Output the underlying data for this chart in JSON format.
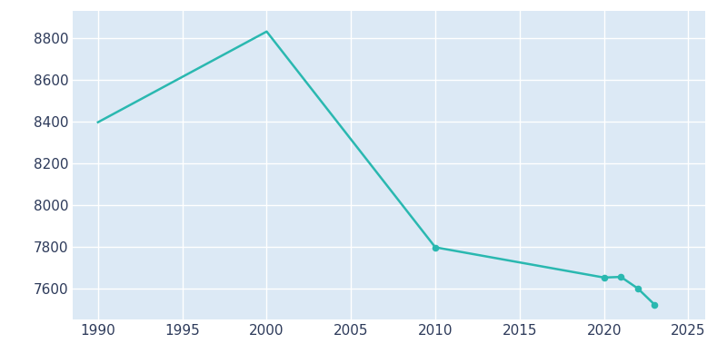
{
  "years": [
    1990,
    2000,
    2010,
    2020,
    2021,
    2022,
    2023
  ],
  "population": [
    8396,
    8831,
    7796,
    7651,
    7654,
    7599,
    7521
  ],
  "line_color": "#2ab8b0",
  "marker_years": [
    2010,
    2020,
    2021,
    2022,
    2023
  ],
  "marker_color": "#2ab8b0",
  "fig_bg_color": "#ffffff",
  "plot_bg_color": "#dce9f5",
  "grid_color": "#ffffff",
  "xlim": [
    1988.5,
    2026
  ],
  "ylim": [
    7450,
    8930
  ],
  "xticks": [
    1990,
    1995,
    2000,
    2005,
    2010,
    2015,
    2020,
    2025
  ],
  "yticks": [
    7600,
    7800,
    8000,
    8200,
    8400,
    8600,
    8800
  ],
  "tick_color": "#2d3a5a",
  "tick_fontsize": 11,
  "line_width": 1.8
}
